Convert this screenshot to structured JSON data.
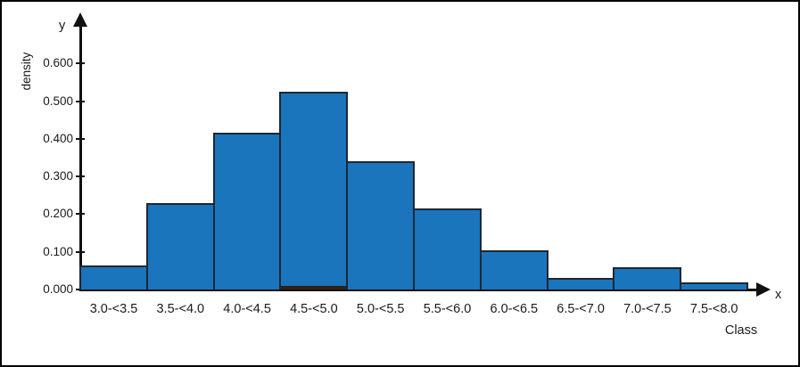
{
  "chart_data": {
    "type": "bar",
    "subtype": "density-histogram",
    "title": "",
    "categories": [
      "3.0-<3.5",
      "3.5-<4.0",
      "4.0-<4.5",
      "4.5-<5.0",
      "5.0-<5.5",
      "5.5-<6.0",
      "6.0-<6.5",
      "6.5-<7.0",
      "7.0-<7.5",
      "7.5-<8.0"
    ],
    "values": [
      0.065,
      0.23,
      0.415,
      0.525,
      0.34,
      0.215,
      0.105,
      0.03,
      0.06,
      0.02
    ],
    "ylabel": "density",
    "xlabel": "Class",
    "axis_arrow_labels": {
      "y": "y",
      "x": "x"
    },
    "yticks": [
      "0.000",
      "0.100",
      "0.200",
      "0.300",
      "0.400",
      "0.500",
      "0.600"
    ],
    "ytick_values": [
      0.0,
      0.1,
      0.2,
      0.3,
      0.4,
      0.5,
      0.6
    ],
    "ylim": [
      0,
      0.65
    ],
    "class_width": 0.5,
    "grid": false,
    "legend": "none",
    "bar_color": "#1b75bc",
    "bar_border_color": "#1c2733",
    "axis_color": "#111111",
    "overlay_bar": {
      "category": "4.5-<5.0",
      "value": 0.01,
      "color": "#32200f"
    }
  }
}
